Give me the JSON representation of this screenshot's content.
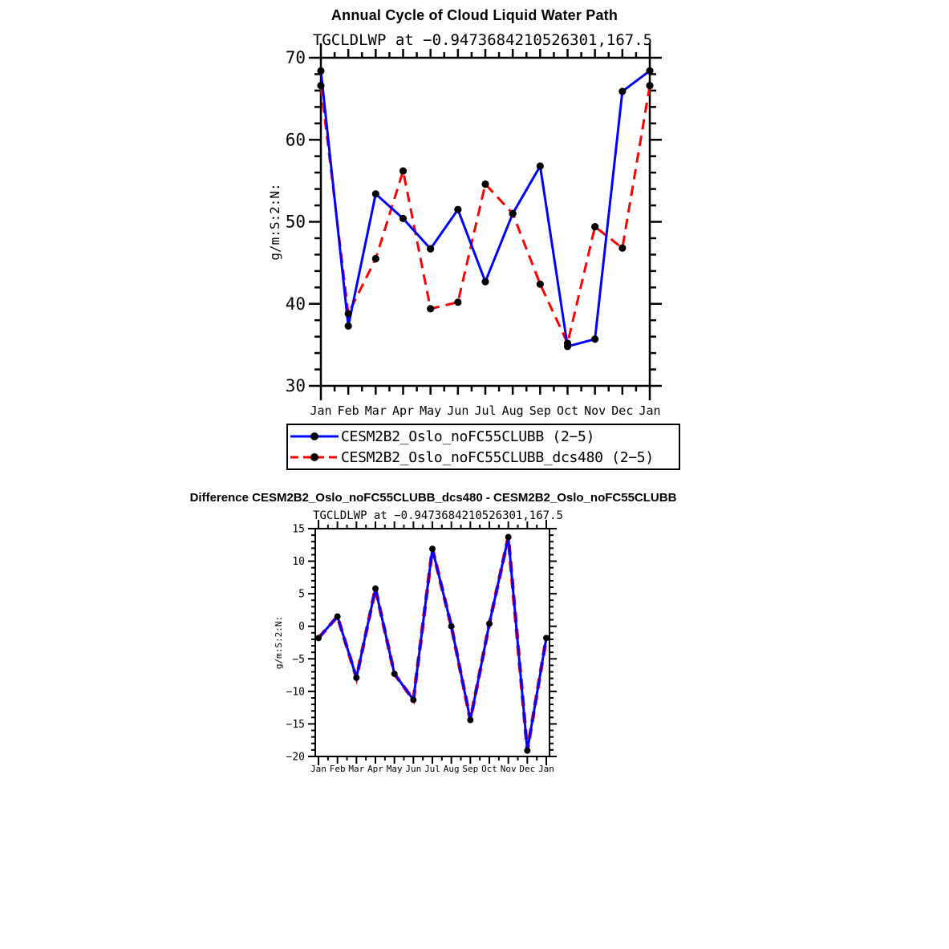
{
  "chart_data": [
    {
      "type": "line",
      "title": "Annual Cycle of Cloud Liquid Water Path",
      "subtitle": "TGCLDLWP at −0.9473684210526301,167.5",
      "xlabel": "",
      "ylabel": "g/m:S:2:N:",
      "categories": [
        "Jan",
        "Feb",
        "Mar",
        "Apr",
        "May",
        "Jun",
        "Jul",
        "Aug",
        "Sep",
        "Oct",
        "Nov",
        "Dec",
        "Jan"
      ],
      "ylim": [
        30,
        70
      ],
      "ytick_values": [
        70,
        60,
        50,
        40,
        30
      ],
      "ytick_labels": [
        "70",
        "60",
        "50",
        "40",
        "30"
      ],
      "ytick_minor_step": 2,
      "grid": false,
      "legend_position": "below",
      "series": [
        {
          "name": "CESM2B2_Oslo_noFC55CLUBB (2−5)",
          "color": "#0000ff",
          "line_style": "solid",
          "marker": "filled-circle",
          "marker_color": "#000000",
          "values": [
            68.4,
            37.3,
            53.4,
            50.4,
            46.7,
            51.5,
            42.7,
            51.0,
            56.8,
            34.8,
            35.7,
            65.9,
            68.4
          ]
        },
        {
          "name": "CESM2B2_Oslo_noFC55CLUBB_dcs480 (2−5)",
          "color": "#ff0000",
          "line_style": "dashed",
          "marker": "filled-circle",
          "marker_color": "#000000",
          "values": [
            66.6,
            38.8,
            45.5,
            56.2,
            39.4,
            40.2,
            54.6,
            51.0,
            42.4,
            35.2,
            49.4,
            46.8,
            66.6
          ]
        }
      ]
    },
    {
      "type": "line",
      "title": "Difference CESM2B2_Oslo_noFC55CLUBB_dcs480 - CESM2B2_Oslo_noFC55CLUBB",
      "subtitle": "TGCLDLWP at −0.9473684210526301,167.5",
      "xlabel": "",
      "ylabel": "g/m:S:2:N:",
      "categories": [
        "Jan",
        "Feb",
        "Mar",
        "Apr",
        "May",
        "Jun",
        "Jul",
        "Aug",
        "Sep",
        "Oct",
        "Nov",
        "Dec",
        "Jan"
      ],
      "ylim": [
        -20,
        15
      ],
      "ytick_values": [
        15,
        10,
        5,
        0,
        -5,
        -10,
        -15,
        -20
      ],
      "ytick_labels": [
        "15",
        "10",
        "5",
        "0",
        "−5",
        "−10",
        "−15",
        "−20"
      ],
      "ytick_minor_step": 1,
      "grid": false,
      "legend_position": "none",
      "series": [
        {
          "color": "#0000ff",
          "underlay_color": "#ff0000",
          "underlay_style": "dashed",
          "line_style": "solid",
          "marker": "filled-circle",
          "marker_color": "#000000",
          "values": [
            -1.8,
            1.5,
            -7.9,
            5.8,
            -7.3,
            -11.3,
            11.9,
            0.0,
            -14.4,
            0.4,
            13.7,
            -19.1,
            -1.8
          ]
        }
      ]
    }
  ]
}
